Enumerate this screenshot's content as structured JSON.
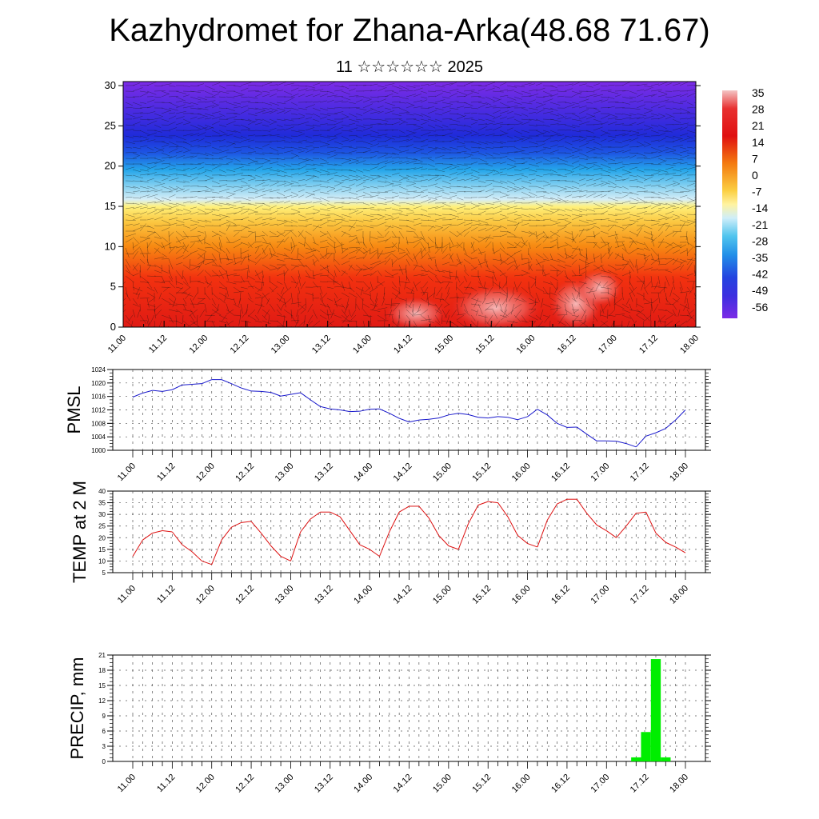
{
  "title": "Kazhydromet for Zhana-Arka(48.68 71.67)",
  "subtitle": "11 ☆☆☆☆☆☆ 2025",
  "chart_data": [
    {
      "type": "heatmap",
      "name": "temperature-wind-cross-section",
      "x_tick_labels": [
        "11.00",
        "11.12",
        "12.00",
        "12.12",
        "13.00",
        "13.12",
        "14.00",
        "14.12",
        "15.00",
        "15.12",
        "16.00",
        "16.12",
        "17.00",
        "17.12",
        "18.00"
      ],
      "y_ticks": [
        0,
        5,
        10,
        15,
        20,
        25,
        30
      ],
      "ylim": [
        0,
        30.5
      ],
      "colorbar_labels": [
        "35",
        "28",
        "21",
        "14",
        "7",
        "0",
        "-7",
        "-14",
        "-21",
        "-28",
        "-35",
        "-42",
        "-49",
        "-56"
      ],
      "colors": {
        "warm_max": "#f4b4b4",
        "red": "#e01010",
        "orange": "#f48a10",
        "yellow": "#fff07a",
        "light_blue": "#bfe6f6",
        "cyan": "#25b7ea",
        "blue": "#1d3bdf",
        "violet": "#7c2be6"
      }
    },
    {
      "type": "line",
      "name": "pmsl",
      "ylabel": "PMSL",
      "x_tick_labels": [
        "11.00",
        "11.12",
        "12.00",
        "12.12",
        "13.00",
        "13.12",
        "14.00",
        "14.12",
        "15.00",
        "15.12",
        "16.00",
        "16.12",
        "17.00",
        "17.12",
        "18.00"
      ],
      "y_ticks": [
        1000,
        1004,
        1008,
        1012,
        1016,
        1020,
        1024
      ],
      "ylim": [
        1000,
        1024
      ],
      "x_hours": [
        0,
        3,
        6,
        9,
        12,
        15,
        18,
        21,
        24,
        27,
        30,
        33,
        36,
        39,
        42,
        45,
        48,
        51,
        54,
        57,
        60,
        63,
        66,
        69,
        72,
        75,
        78,
        81,
        84,
        87,
        90,
        93,
        96,
        99,
        102,
        105,
        108,
        111,
        114,
        117,
        120,
        123,
        126,
        129,
        132,
        135,
        138,
        141,
        144,
        147,
        150,
        153,
        156,
        159,
        162,
        165,
        168
      ],
      "values": [
        1015.8,
        1017.0,
        1017.8,
        1017.5,
        1018.0,
        1019.4,
        1019.6,
        1019.8,
        1021.0,
        1021.0,
        1019.8,
        1018.5,
        1017.6,
        1017.5,
        1017.2,
        1016.1,
        1016.6,
        1017.1,
        1015.0,
        1013.0,
        1012.3,
        1012.0,
        1011.5,
        1011.6,
        1012.2,
        1012.3,
        1011.0,
        1009.5,
        1008.4,
        1009.0,
        1009.2,
        1009.6,
        1010.5,
        1011.0,
        1010.6,
        1009.8,
        1009.6,
        1010.0,
        1009.8,
        1009.1,
        1010.0,
        1012.2,
        1010.5,
        1008.0,
        1006.8,
        1006.9,
        1004.8,
        1002.8,
        1002.8,
        1002.7,
        1002.0,
        1001.0,
        1004.2,
        1005.2,
        1006.5,
        1009.0,
        1012.0
      ],
      "line_color": "#1a1acc"
    },
    {
      "type": "line",
      "name": "temp-2m",
      "ylabel": "TEMP at 2 M",
      "x_tick_labels": [
        "11.00",
        "11.12",
        "12.00",
        "12.12",
        "13.00",
        "13.12",
        "14.00",
        "14.12",
        "15.00",
        "15.12",
        "16.00",
        "16.12",
        "17.00",
        "17.12",
        "18.00"
      ],
      "y_ticks": [
        5,
        10,
        15,
        20,
        25,
        30,
        35,
        40
      ],
      "ylim": [
        5,
        40
      ],
      "x_hours": [
        0,
        3,
        6,
        9,
        12,
        15,
        18,
        21,
        24,
        27,
        30,
        33,
        36,
        39,
        42,
        45,
        48,
        51,
        54,
        57,
        60,
        63,
        66,
        69,
        72,
        75,
        78,
        81,
        84,
        87,
        90,
        93,
        96,
        99,
        102,
        105,
        108,
        111,
        114,
        117,
        120,
        123,
        126,
        129,
        132,
        135,
        138,
        141,
        144,
        147,
        150,
        153,
        156,
        159,
        162,
        165,
        168
      ],
      "values": [
        12,
        19,
        22,
        23,
        22.5,
        17,
        14,
        10,
        8.5,
        19,
        24.5,
        26.5,
        27,
        22,
        16.5,
        12,
        10,
        22.5,
        28,
        31,
        31,
        29,
        23,
        17,
        15,
        12,
        22.5,
        31,
        33.5,
        33.5,
        28.5,
        21,
        16.5,
        15,
        26,
        34,
        35.5,
        35,
        29,
        21,
        17.5,
        16,
        27.5,
        34.5,
        36.5,
        36.5,
        30.5,
        25.5,
        23,
        20,
        25,
        30.5,
        31,
        22,
        18,
        16,
        13.5
      ],
      "line_color": "#dd1111"
    },
    {
      "type": "bar",
      "name": "precip",
      "ylabel": "PRECIP, mm",
      "x_tick_labels": [
        "11.00",
        "11.12",
        "12.00",
        "12.12",
        "13.00",
        "13.12",
        "14.00",
        "14.12",
        "15.00",
        "15.12",
        "16.00",
        "16.12",
        "17.00",
        "17.12",
        "18.00"
      ],
      "y_ticks": [
        0,
        3,
        6,
        9,
        12,
        15,
        18,
        21
      ],
      "ylim": [
        0,
        21
      ],
      "bars": [
        {
          "x_hours": 153,
          "value": 0.8
        },
        {
          "x_hours": 156,
          "value": 5.8
        },
        {
          "x_hours": 159,
          "value": 20.2
        },
        {
          "x_hours": 162,
          "value": 0.8
        }
      ],
      "bar_color": "#00ee00"
    }
  ]
}
